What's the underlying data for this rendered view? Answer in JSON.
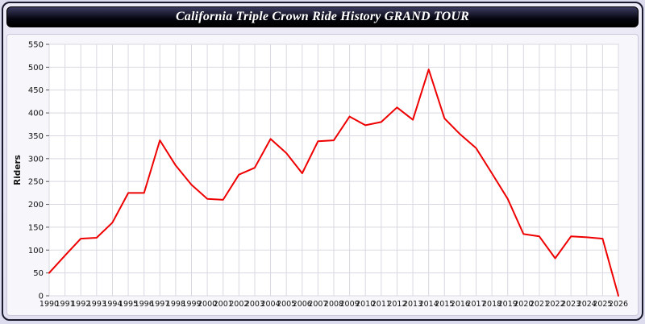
{
  "window": {
    "title": "California Triple Crown Ride History GRAND TOUR"
  },
  "chart_data": {
    "type": "line",
    "title": "California Triple Crown Ride History GRAND TOUR",
    "xlabel": "",
    "ylabel": "Riders",
    "ylim": [
      0,
      550
    ],
    "ytick_step": 50,
    "grid": true,
    "line_color": "#ee0000",
    "x": [
      1990,
      1991,
      1992,
      1993,
      1994,
      1995,
      1996,
      1997,
      1998,
      1999,
      2000,
      2001,
      2002,
      2003,
      2004,
      2005,
      2006,
      2007,
      2008,
      2009,
      2010,
      2011,
      2012,
      2013,
      2014,
      2015,
      2016,
      2017,
      2018,
      2019,
      2020,
      2021,
      2022,
      2023,
      2024,
      2025,
      2026
    ],
    "values": [
      50,
      88,
      125,
      127,
      160,
      225,
      225,
      340,
      285,
      243,
      212,
      210,
      265,
      280,
      343,
      312,
      268,
      338,
      340,
      392,
      373,
      380,
      412,
      385,
      495,
      388,
      353,
      323,
      268,
      212,
      135,
      130,
      82,
      130,
      128,
      125,
      0
    ]
  }
}
